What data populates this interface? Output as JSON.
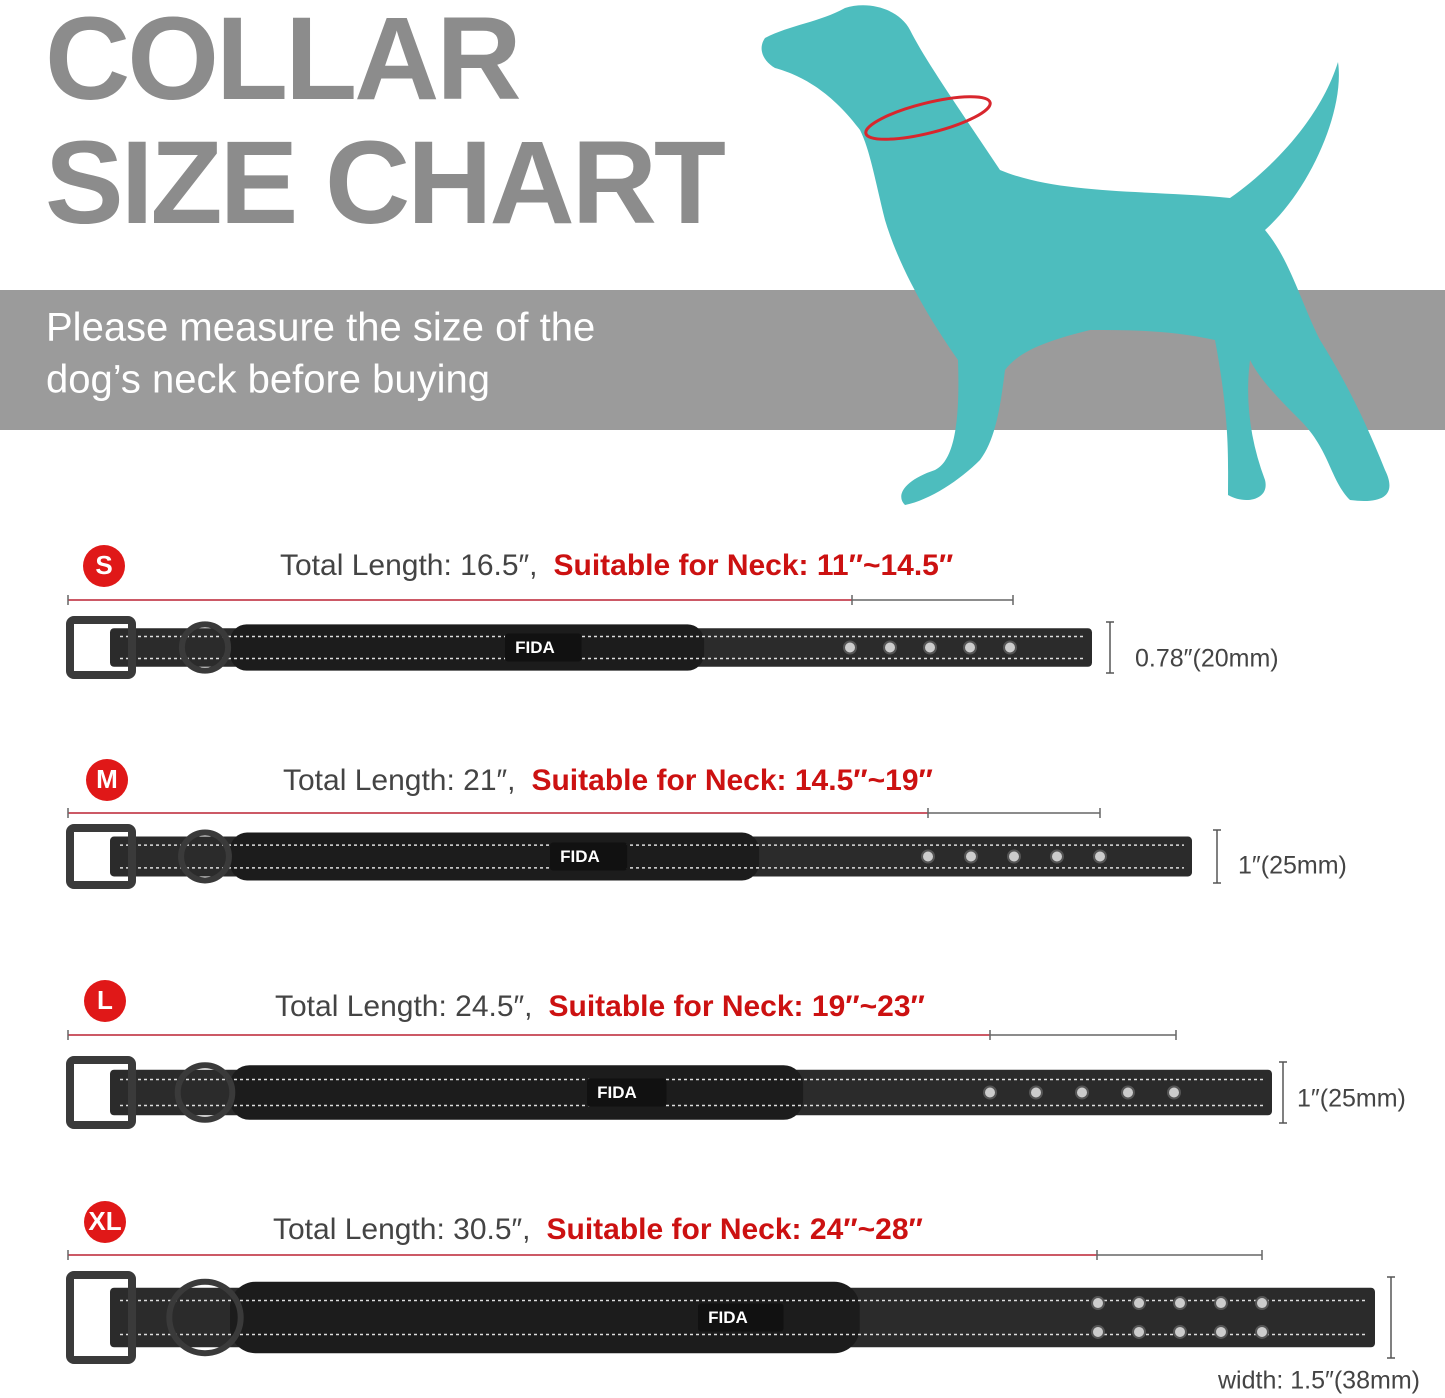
{
  "header": {
    "title": [
      "COLLAR",
      "SIZE CHART"
    ],
    "subtitle": [
      "Please measure the size of the",
      "dog’s neck before buying"
    ]
  },
  "sizes": [
    {
      "badge": "S",
      "total_length": "Total Length: 16.5″,",
      "suitable": "Suitable for Neck: 11″~14.5″",
      "brand": "FIDA",
      "width": "0.78″(20mm)"
    },
    {
      "badge": "M",
      "total_length": "Total Length: 21″,",
      "suitable": "Suitable for Neck: 14.5″~19″",
      "brand": "FIDA",
      "width": "1″(25mm)"
    },
    {
      "badge": "L",
      "total_length": "Total Length: 24.5″,",
      "suitable": "Suitable for Neck: 19″~23″",
      "brand": "FIDA",
      "width": "1″(25mm)"
    },
    {
      "badge": "XL",
      "total_length": "Total Length: 30.5″,",
      "suitable": "Suitable for Neck: 24″~28″",
      "brand": "FIDA",
      "width": "width: 1.5″(38mm)"
    }
  ]
}
